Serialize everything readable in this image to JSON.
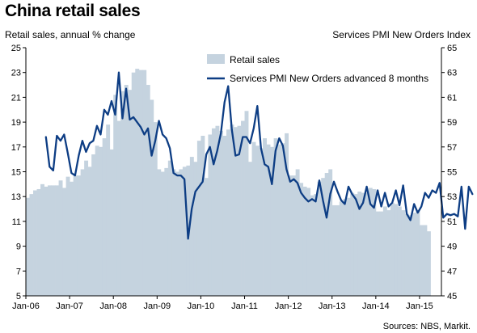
{
  "chart_data": {
    "type": "area",
    "title": "China retail sales",
    "ylabel": "Retail sales, annual % change",
    "ylabel_right": "Services PMI New Orders Index",
    "source": "Sources: NBS, Markit.",
    "ylim": [
      5,
      25
    ],
    "ylim_right": [
      45,
      65
    ],
    "yticks": [
      "5",
      "7",
      "9",
      "11",
      "13",
      "15",
      "17",
      "19",
      "21",
      "23",
      "25"
    ],
    "yticks_right": [
      "45",
      "47",
      "49",
      "51",
      "53",
      "55",
      "57",
      "59",
      "61",
      "63",
      "65"
    ],
    "xticks": [
      "Jan-06",
      "Jan-07",
      "Jan-08",
      "Jan-09",
      "Jan-10",
      "Jan-11",
      "Jan-12",
      "Jan-13",
      "Jan-14",
      "Jan-15"
    ],
    "legend_position": "top-center",
    "grid": false,
    "series": [
      {
        "name": "Retail sales",
        "kind": "area",
        "axis": "left",
        "color": "#c5d3df",
        "x_start": "2006-01",
        "values": [
          12.9,
          13.2,
          13.5,
          13.6,
          14.0,
          13.8,
          13.9,
          13.9,
          13.9,
          14.3,
          13.7,
          14.6,
          14.2,
          14.7,
          14.7,
          15.2,
          15.9,
          15.4,
          16.4,
          17.1,
          17.0,
          17.7,
          18.8,
          16.8,
          21.2,
          19.1,
          21.5,
          22.0,
          21.6,
          23.0,
          23.3,
          23.2,
          23.2,
          22.0,
          20.8,
          19.0,
          15.2,
          15.0,
          15.3,
          15.9,
          15.2,
          15.0,
          15.2,
          15.4,
          15.5,
          16.2,
          15.8,
          17.5,
          17.9,
          14.5,
          18.0,
          18.5,
          18.7,
          18.3,
          17.9,
          18.4,
          18.8,
          18.6,
          18.7,
          19.1,
          19.9,
          15.8,
          17.4,
          17.1,
          16.9,
          17.7,
          17.2,
          17.0,
          17.7,
          17.2,
          17.3,
          18.1,
          14.7,
          14.7,
          15.2,
          14.1,
          13.8,
          13.7,
          13.1,
          13.2,
          14.2,
          14.5,
          14.9,
          15.2,
          12.3,
          12.3,
          12.6,
          12.8,
          12.9,
          13.3,
          13.2,
          13.4,
          13.3,
          13.3,
          13.7,
          13.6,
          11.8,
          11.8,
          12.2,
          11.9,
          12.5,
          12.4,
          12.2,
          11.9,
          11.6,
          11.5,
          11.7,
          11.9,
          10.7,
          10.7,
          10.2
        ]
      },
      {
        "name": "Services PMI New Orders advanced 8 months",
        "kind": "line",
        "axis": "right",
        "color": "#0d3d84",
        "x_start": "2006-06",
        "values": [
          57.8,
          55.4,
          55.1,
          57.9,
          57.5,
          58.0,
          56.5,
          54.9,
          54.7,
          56.3,
          57.5,
          56.6,
          57.3,
          57.5,
          58.7,
          58.0,
          60.0,
          59.6,
          60.7,
          59.6,
          63.0,
          59.3,
          61.7,
          59.2,
          59.4,
          59.0,
          58.6,
          58.0,
          58.5,
          56.3,
          57.5,
          59.1,
          58.0,
          57.7,
          56.9,
          54.9,
          54.7,
          54.7,
          54.4,
          49.6,
          52.0,
          53.4,
          53.8,
          54.2,
          56.4,
          57.0,
          55.6,
          56.7,
          58.1,
          60.6,
          61.9,
          58.4,
          56.3,
          56.4,
          57.8,
          57.8,
          57.3,
          58.5,
          60.3,
          56.9,
          55.6,
          55.4,
          54.0,
          56.7,
          57.7,
          57.1,
          55.2,
          54.2,
          54.4,
          54.1,
          53.3,
          52.9,
          52.6,
          52.8,
          52.6,
          54.3,
          52.7,
          51.3,
          53.2,
          54.2,
          53.4,
          52.7,
          52.4,
          53.8,
          53.2,
          52.8,
          52.0,
          52.5,
          53.8,
          52.4,
          52.1,
          53.5,
          52.2,
          53.3,
          52.2,
          52.5,
          53.5,
          52.3,
          53.9,
          51.6,
          51.1,
          52.4,
          51.7,
          52.2,
          53.3,
          52.9,
          53.5,
          53.3,
          54.1,
          51.3,
          51.6,
          51.5,
          51.6,
          51.4,
          53.8,
          50.4,
          53.8,
          53.2
        ]
      }
    ]
  }
}
